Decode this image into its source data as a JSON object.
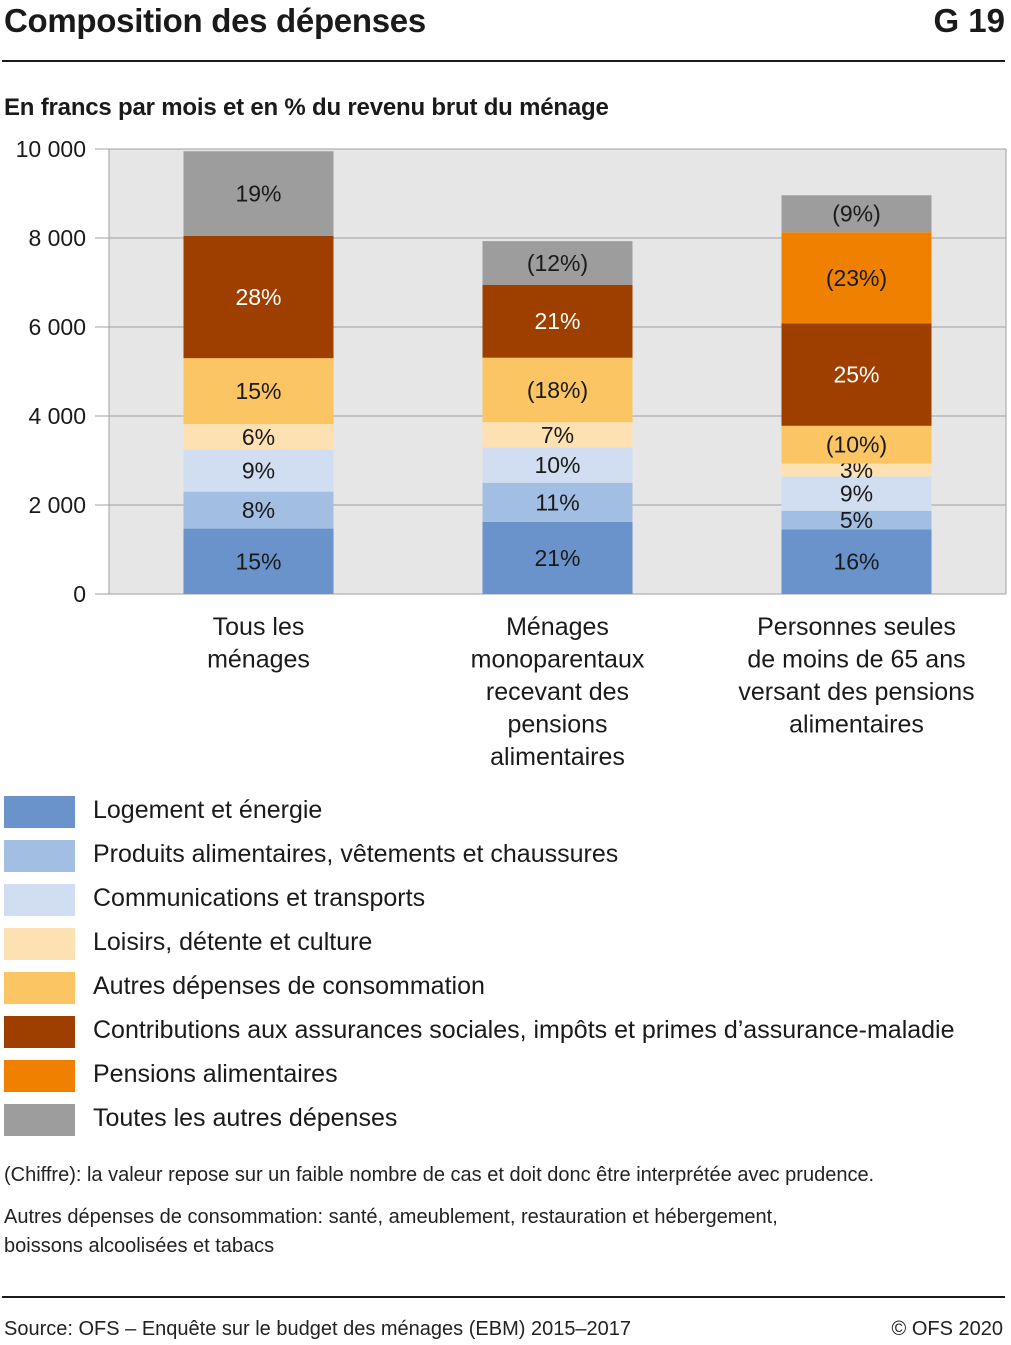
{
  "header": {
    "title": "Composition des dépenses",
    "figure_id": "G 19"
  },
  "subtitle": "En francs par mois et en % du revenu brut du ménage",
  "chart_data": {
    "type": "bar",
    "stacked": true,
    "title": "Composition des dépenses",
    "subtitle": "En francs par mois et en % du revenu brut du ménage",
    "ylim": [
      0,
      10000
    ],
    "yticks": [
      0,
      2000,
      4000,
      6000,
      8000,
      10000
    ],
    "ytick_labels": [
      "0",
      "2 000",
      "4 000",
      "6 000",
      "8 000",
      "10 000"
    ],
    "grid": true,
    "legend_position": "bottom",
    "categories": [
      [
        "Tous les",
        "ménages"
      ],
      [
        "Ménages",
        "monoparentaux",
        "recevant des",
        "pensions",
        "alimentaires"
      ],
      [
        "Personnes seules",
        "de moins de 65 ans",
        "versant des pensions",
        "alimentaires"
      ]
    ],
    "series": [
      {
        "name": "Logement et énergie",
        "color": "#6a93cc",
        "values": [
          1470,
          1620,
          1450
        ],
        "labels": [
          "15%",
          "21%",
          "16%"
        ]
      },
      {
        "name": "Produits alimentaires, vêtements et chaussures",
        "color": "#a3bee3",
        "values": [
          830,
          880,
          420
        ],
        "labels": [
          "8%",
          "11%",
          "5%"
        ]
      },
      {
        "name": "Communications et transports",
        "color": "#d1ddf1",
        "values": [
          940,
          790,
          770
        ],
        "labels": [
          "9%",
          "10%",
          "9%"
        ]
      },
      {
        "name": "Loisirs, détente et culture",
        "color": "#fde1b2",
        "values": [
          580,
          570,
          290
        ],
        "labels": [
          "6%",
          "7%",
          "3%"
        ]
      },
      {
        "name": "Autres dépenses de consommation",
        "color": "#fbc563",
        "values": [
          1480,
          1450,
          850
        ],
        "labels": [
          "15%",
          "(18%)",
          "(10%)"
        ]
      },
      {
        "name": "Contributions aux assurances sociales, impôts et primes d’assurance-maladie",
        "color": "#9e3f00",
        "values": [
          2750,
          1640,
          2300
        ],
        "labels": [
          "28%",
          "21%",
          "25%"
        ]
      },
      {
        "name": "Pensions alimentaires",
        "color": "#f08100",
        "values": [
          0,
          0,
          2050
        ],
        "labels": [
          "",
          "",
          "(23%)"
        ]
      },
      {
        "name": "Toutes les autres dépenses",
        "color": "#9d9d9d",
        "values": [
          1900,
          980,
          830
        ],
        "labels": [
          "19%",
          "(12%)",
          "(9%)"
        ]
      }
    ],
    "label_colors": {
      "dark": "#ffffff",
      "light": "#1a1a1a"
    }
  },
  "notes": {
    "note1": "(Chiffre): la valeur repose sur un faible nombre de cas et doit donc être interprétée avec prudence.",
    "note2_line1": "Autres dépenses de consommation: santé, ameublement, restauration et hébergement,",
    "note2_line2": "boissons alcoolisées et tabacs"
  },
  "footer": {
    "source": "Source: OFS – Enquête sur le budget des ménages (EBM) 2015–2017",
    "copyright": "© OFS 2020"
  }
}
